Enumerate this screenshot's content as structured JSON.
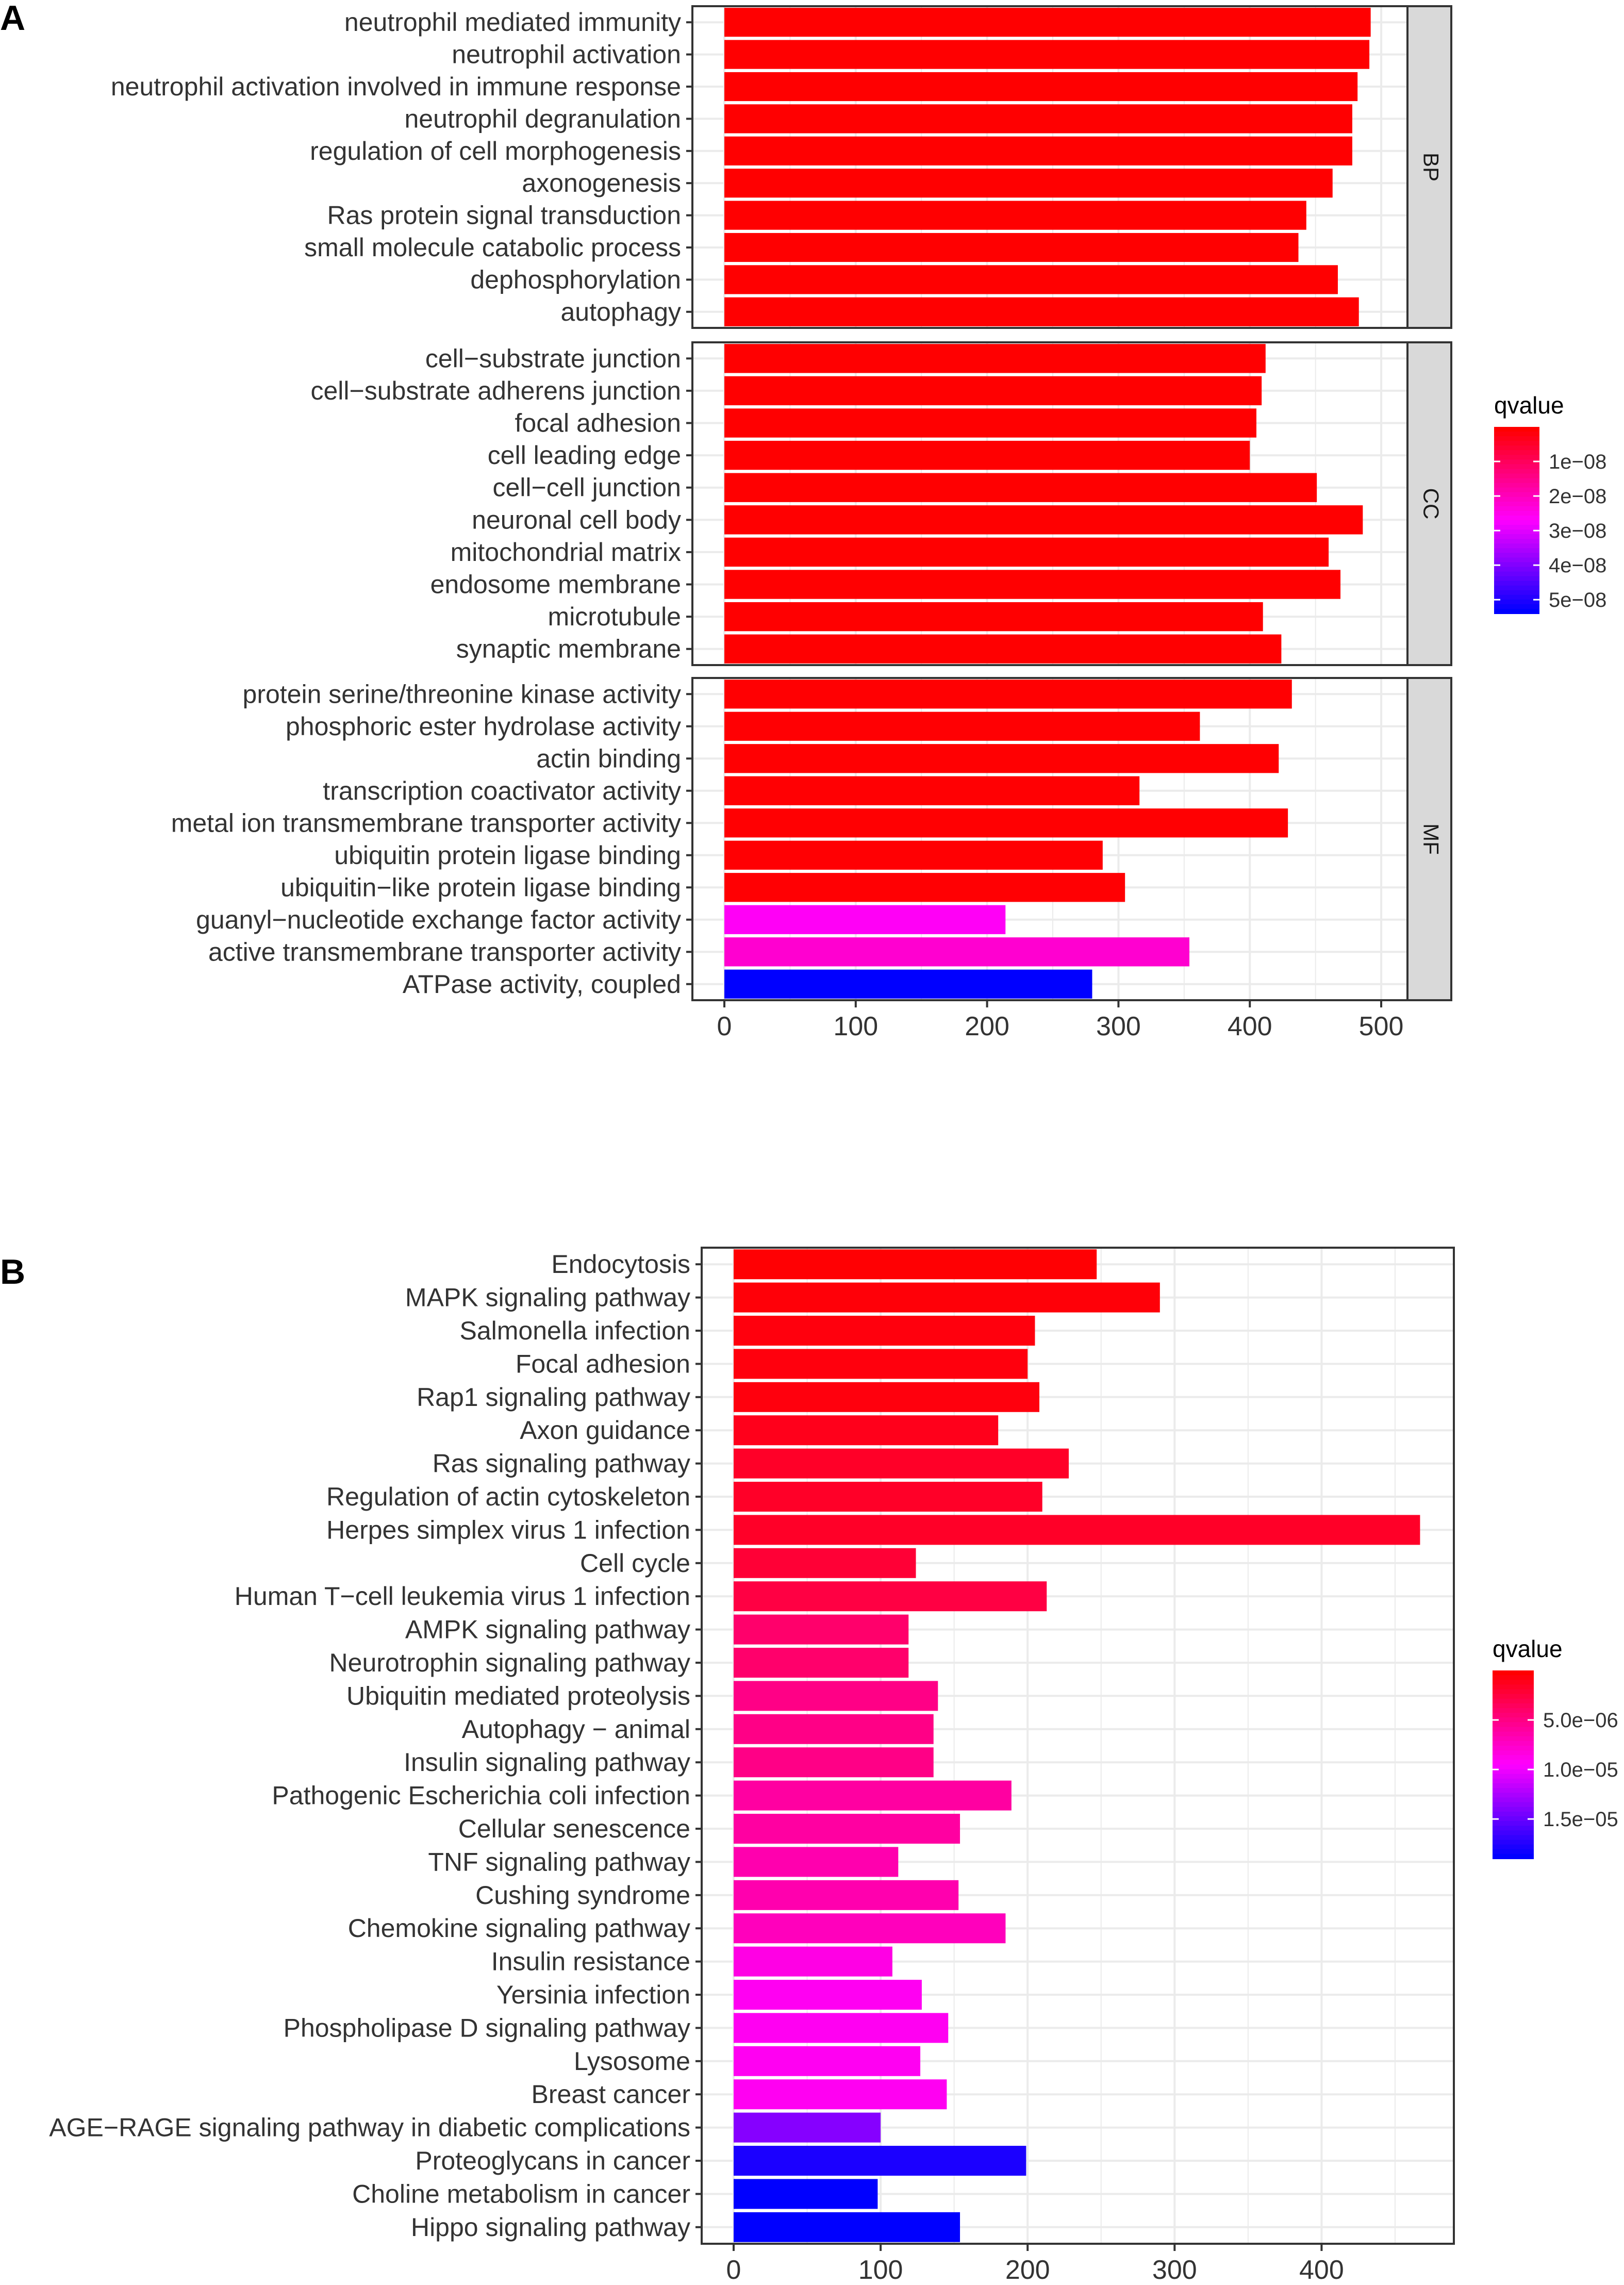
{
  "chart_data": [
    {
      "panel": "A",
      "type": "bar",
      "orientation": "horizontal",
      "xlim": [
        0,
        520
      ],
      "xticks": [
        "0",
        "100",
        "200",
        "300",
        "400",
        "500"
      ],
      "facets": [
        {
          "name": "BP",
          "categories": [
            "neutrophil mediated immunity",
            "neutrophil activation",
            "neutrophil activation involved in immune response",
            "neutrophil degranulation",
            "regulation of cell morphogenesis",
            "axonogenesis",
            "Ras protein signal transduction",
            "small molecule catabolic process",
            "dephosphorylation",
            "autophagy"
          ],
          "values": [
            492,
            491,
            482,
            478,
            478,
            463,
            443,
            437,
            467,
            483
          ],
          "qvalues": [
            1e-10,
            1e-10,
            1e-10,
            1e-10,
            1e-10,
            1e-10,
            1e-10,
            1e-10,
            1e-10,
            1e-10
          ]
        },
        {
          "name": "CC",
          "categories": [
            "cell−substrate junction",
            "cell−substrate adherens junction",
            "focal adhesion",
            "cell leading edge",
            "cell−cell junction",
            "neuronal cell body",
            "mitochondrial matrix",
            "endosome membrane",
            "microtubule",
            "synaptic membrane"
          ],
          "values": [
            412,
            409,
            405,
            400,
            451,
            486,
            460,
            469,
            410,
            424
          ],
          "qvalues": [
            1e-10,
            1e-10,
            1e-10,
            1e-10,
            1e-10,
            1e-10,
            1e-10,
            1e-10,
            1e-10,
            1e-10
          ]
        },
        {
          "name": "MF",
          "categories": [
            "protein serine/threonine kinase activity",
            "phosphoric ester hydrolase activity",
            "actin binding",
            "transcription coactivator activity",
            "metal ion transmembrane transporter activity",
            "ubiquitin protein ligase binding",
            "ubiquitin−like protein ligase binding",
            "guanyl−nucleotide exchange factor activity",
            "active transmembrane transporter activity",
            "ATPase activity, coupled"
          ],
          "values": [
            432,
            362,
            422,
            316,
            429,
            288,
            305,
            214,
            354,
            280
          ],
          "qvalues": [
            2e-10,
            3e-10,
            2e-10,
            3e-10,
            2e-10,
            3e-10,
            3e-10,
            2.6e-08,
            2.2e-08,
            5.4e-08
          ]
        }
      ],
      "legend": {
        "title": "qvalue",
        "ticks": [
          "1e−08",
          "2e−08",
          "3e−08",
          "4e−08",
          "5e−08"
        ],
        "tick_values": [
          1e-08,
          2e-08,
          3e-08,
          4e-08,
          5e-08
        ],
        "range": [
          0,
          5.4e-08
        ]
      }
    },
    {
      "panel": "B",
      "type": "bar",
      "orientation": "horizontal",
      "xlim": [
        0,
        490
      ],
      "xticks": [
        "0",
        "100",
        "200",
        "300",
        "400"
      ],
      "categories": [
        "Endocytosis",
        "MAPK signaling pathway",
        "Salmonella infection",
        "Focal adhesion",
        "Rap1 signaling pathway",
        "Axon guidance",
        "Ras signaling pathway",
        "Regulation of actin cytoskeleton",
        "Herpes simplex virus 1 infection",
        "Cell cycle",
        "Human T−cell leukemia virus 1 infection",
        "AMPK signaling pathway",
        "Neurotrophin signaling pathway",
        "Ubiquitin mediated proteolysis",
        "Autophagy − animal",
        "Insulin signaling pathway",
        "Pathogenic Escherichia coli infection",
        "Cellular senescence",
        "TNF signaling pathway",
        "Cushing syndrome",
        "Chemokine signaling pathway",
        "Insulin resistance",
        "Yersinia infection",
        "Phospholipase D signaling pathway",
        "Lysosome",
        "Breast cancer",
        "AGE−RAGE signaling pathway in diabetic complications",
        "Proteoglycans in cancer",
        "Choline metabolism in cancer",
        "Hippo signaling pathway"
      ],
      "values": [
        247,
        290,
        205,
        200,
        208,
        180,
        228,
        210,
        467,
        124,
        213,
        119,
        119,
        139,
        136,
        136,
        189,
        154,
        112,
        153,
        185,
        108,
        128,
        146,
        127,
        145,
        100,
        199,
        98,
        154
      ],
      "qvalues": [
        1e-07,
        3e-07,
        5e-07,
        5e-07,
        5e-07,
        1e-06,
        1.5e-06,
        1.5e-06,
        1.5e-06,
        2e-06,
        2.5e-06,
        4e-06,
        4e-06,
        5e-06,
        5e-06,
        5e-06,
        6e-06,
        6e-06,
        6.5e-06,
        6.5e-06,
        7e-06,
        8.5e-06,
        9e-06,
        9e-06,
        9e-06,
        9e-06,
        1.4e-05,
        1.8e-05,
        1.9e-05,
        1.9e-05
      ],
      "legend": {
        "title": "qvalue",
        "ticks": [
          "5.0e−06",
          "1.0e−05",
          "1.5e−05"
        ],
        "tick_values": [
          5e-06,
          1e-05,
          1.5e-05
        ],
        "range": [
          0,
          1.9e-05
        ]
      }
    }
  ],
  "colors": {
    "low": "#ff0000",
    "mid": "#ff00ff",
    "high": "#0000ff",
    "facet_strip": "#d9d9d9",
    "grid": "#ebebeb",
    "frame": "#333333"
  }
}
